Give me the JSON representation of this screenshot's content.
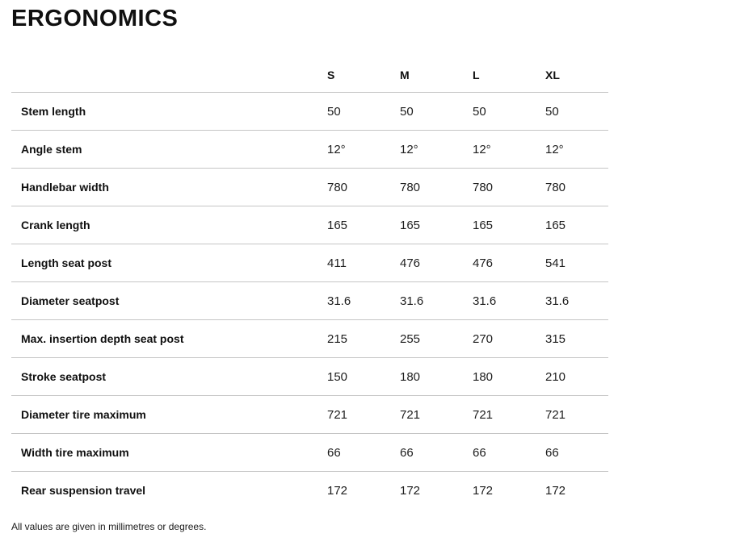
{
  "page": {
    "title": "ERGONOMICS",
    "footnote": "All values are given in millimetres or degrees."
  },
  "table": {
    "columns": [
      "S",
      "M",
      "L",
      "XL"
    ],
    "rows": [
      {
        "label": "Stem length",
        "values": [
          "50",
          "50",
          "50",
          "50"
        ]
      },
      {
        "label": "Angle stem",
        "values": [
          "12°",
          "12°",
          "12°",
          "12°"
        ]
      },
      {
        "label": "Handlebar width",
        "values": [
          "780",
          "780",
          "780",
          "780"
        ]
      },
      {
        "label": "Crank length",
        "values": [
          "165",
          "165",
          "165",
          "165"
        ]
      },
      {
        "label": "Length seat post",
        "values": [
          "411",
          "476",
          "476",
          "541"
        ]
      },
      {
        "label": "Diameter seatpost",
        "values": [
          "31.6",
          "31.6",
          "31.6",
          "31.6"
        ]
      },
      {
        "label": "Max. insertion depth seat post",
        "values": [
          "215",
          "255",
          "270",
          "315"
        ]
      },
      {
        "label": "Stroke seatpost",
        "values": [
          "150",
          "180",
          "180",
          "210"
        ]
      },
      {
        "label": "Diameter tire maximum",
        "values": [
          "721",
          "721",
          "721",
          "721"
        ]
      },
      {
        "label": "Width tire maximum",
        "values": [
          "66",
          "66",
          "66",
          "66"
        ]
      },
      {
        "label": "Rear suspension travel",
        "values": [
          "172",
          "172",
          "172",
          "172"
        ]
      }
    ]
  },
  "colors": {
    "background": "#ffffff",
    "text": "#101010",
    "divider": "#c5c5c5"
  }
}
